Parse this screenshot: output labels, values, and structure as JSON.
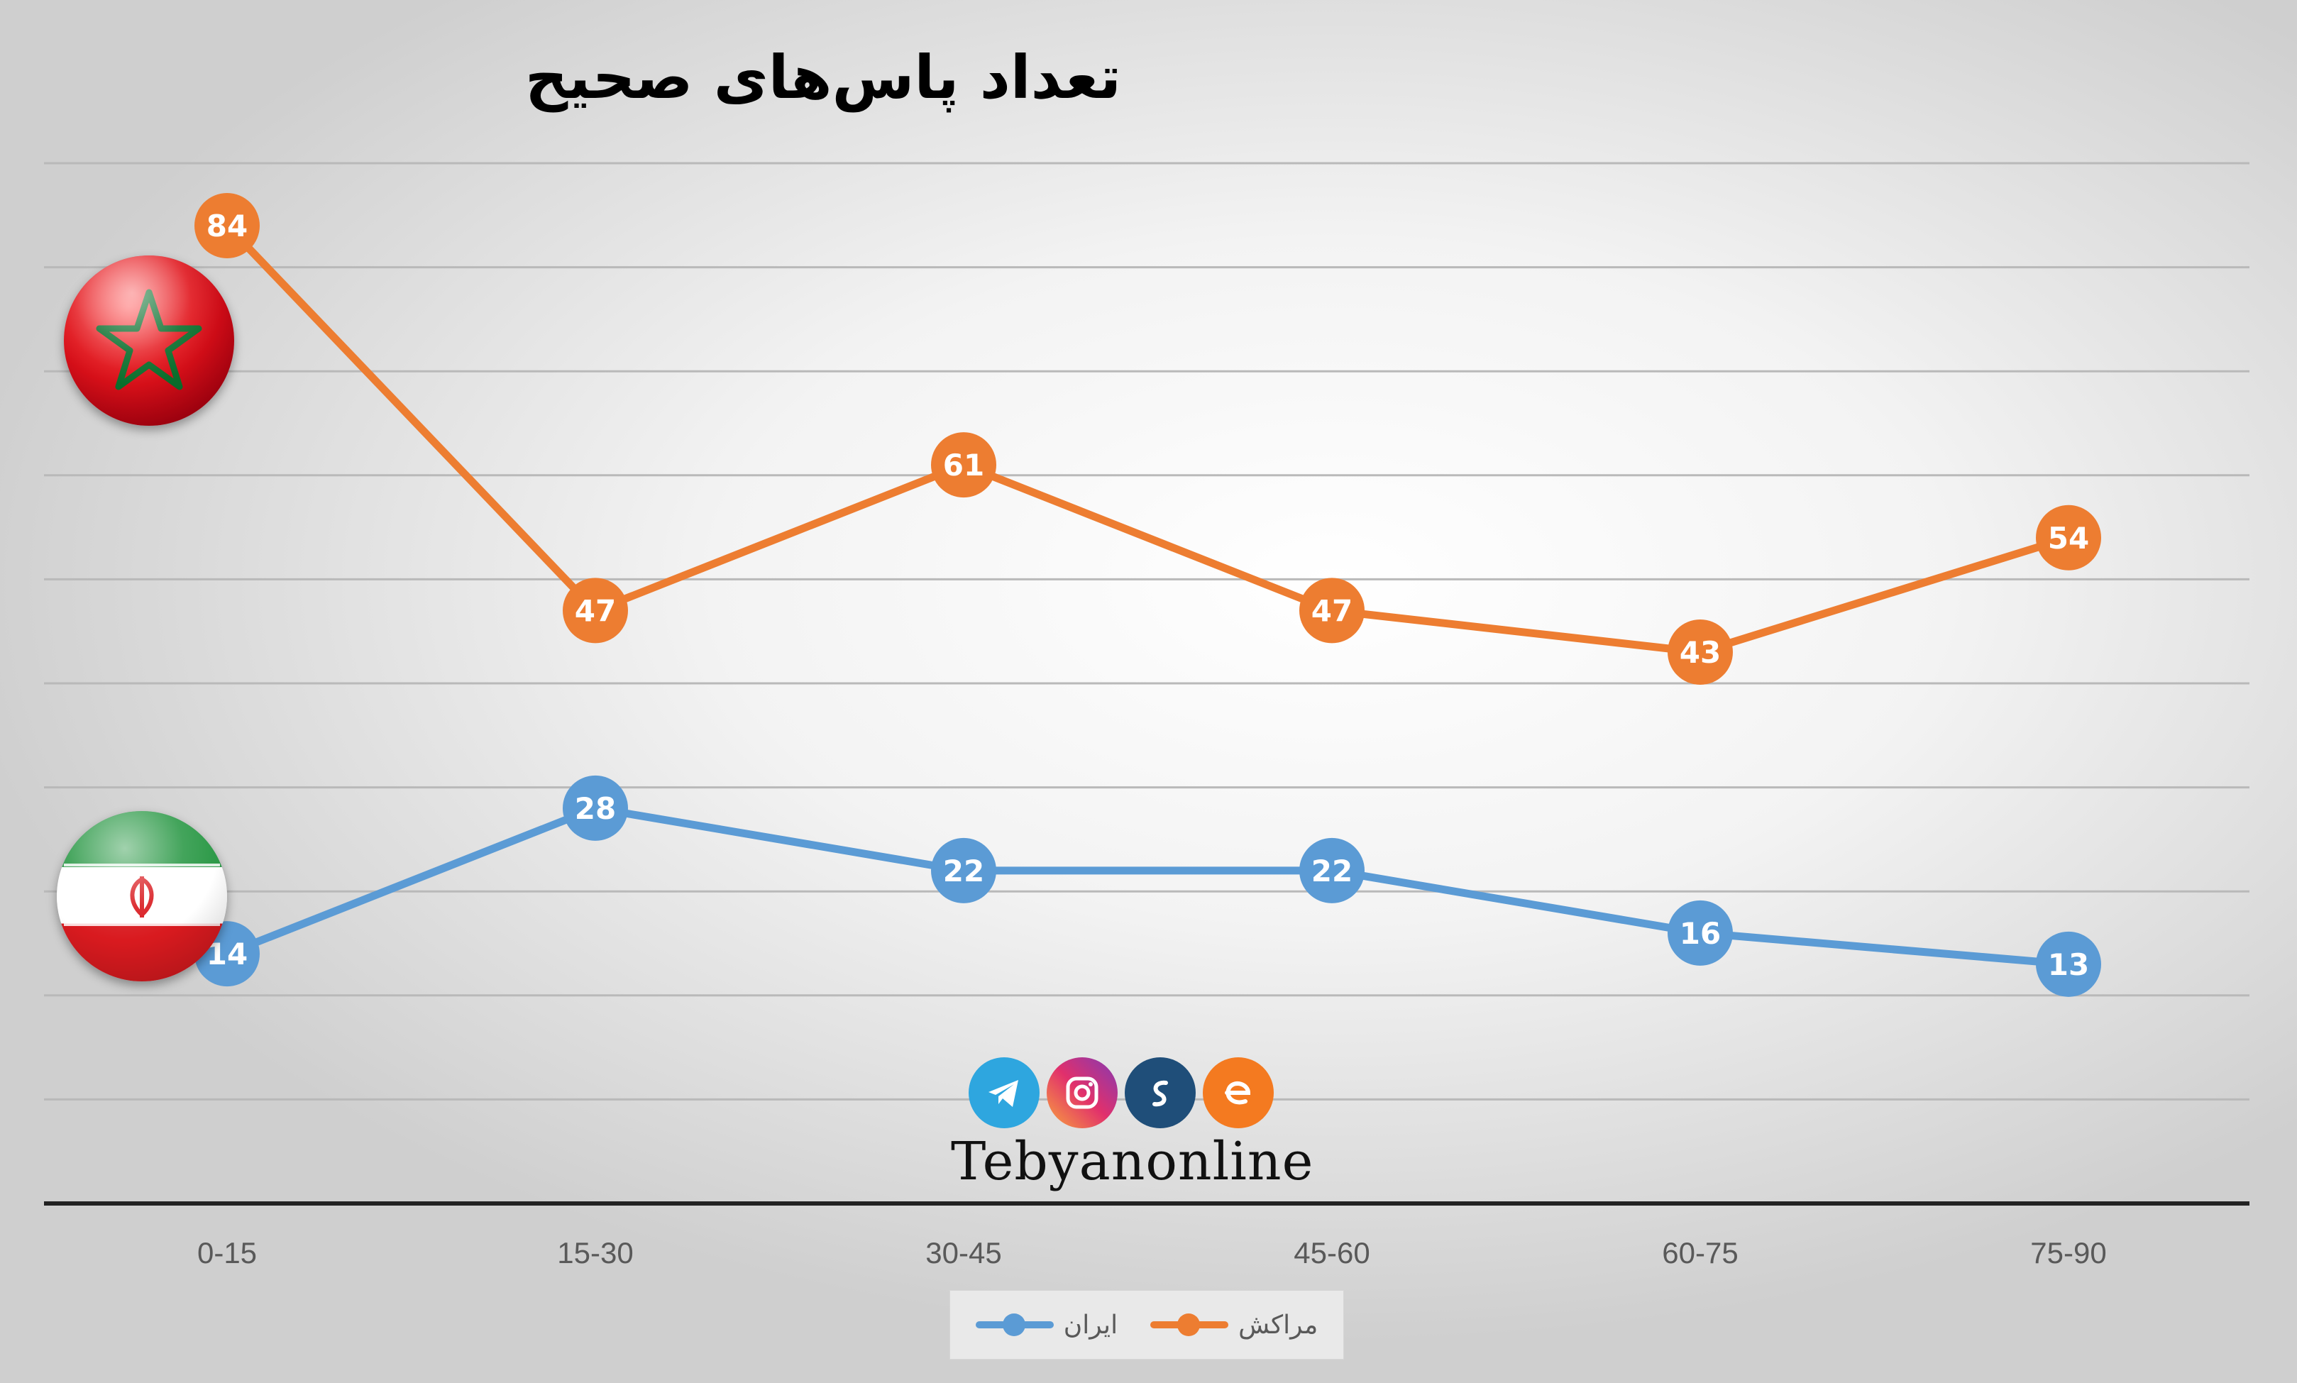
{
  "chart_data": {
    "type": "line",
    "title": "تعداد پاس‌های صحیح",
    "categories": [
      "0-15",
      "15-30",
      "30-45",
      "45-60",
      "60-75",
      "75-90"
    ],
    "series": [
      {
        "name": "مراکش",
        "values": [
          84,
          47,
          61,
          47,
          43,
          54
        ],
        "color": "#ED7D31"
      },
      {
        "name": "ایران",
        "values": [
          14,
          28,
          22,
          22,
          16,
          13
        ],
        "color": "#5B9BD5"
      }
    ],
    "ylim": [
      -10,
      90
    ],
    "grid": true,
    "data_labels": true,
    "legend": "bottom"
  },
  "branding": {
    "name": "Tebyanonline",
    "icons": [
      "telegram-icon",
      "instagram-icon",
      "soroush-icon",
      "eitaa-icon"
    ]
  },
  "flags": [
    "morocco-flag",
    "iran-flag"
  ]
}
